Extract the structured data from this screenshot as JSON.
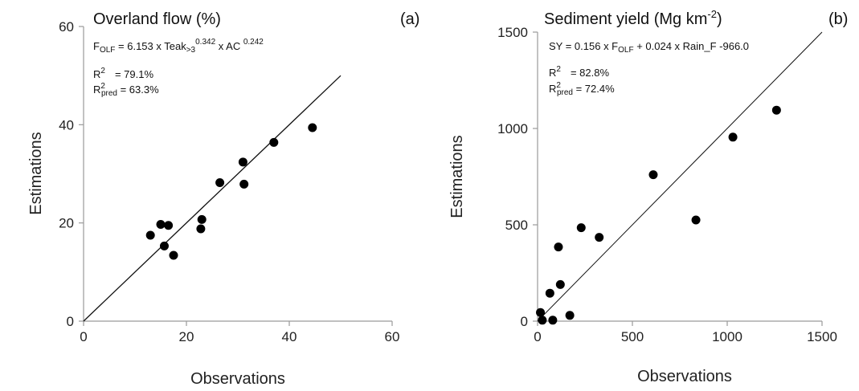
{
  "chart_data": [
    {
      "type": "scatter",
      "panel_label": "(a)",
      "title": "Overland flow (%)",
      "xlabel": "Observations",
      "ylabel": "Estimations",
      "xlim": [
        0,
        60
      ],
      "ylim": [
        0,
        60
      ],
      "xticks": [
        0,
        20,
        40,
        60
      ],
      "yticks": [
        0,
        20,
        40,
        60
      ],
      "tick_labels_x": [
        "0",
        "20",
        "40",
        "60"
      ],
      "tick_labels_y": [
        "0",
        "20",
        "40",
        "60"
      ],
      "equation": {
        "lhs": "F",
        "lhs_sub": "OLF",
        "rest1": " = 6.153 x Teak",
        "sub1": ">3",
        "sup1": "0.342",
        "rest2": " x AC ",
        "sup2": "0.242"
      },
      "r2": {
        "label": "R",
        "sup": "2",
        "value": "= 79.1%"
      },
      "r2pred": {
        "label": "R",
        "sup": "2",
        "sub": "pred",
        "value": " = 63.3%"
      },
      "fit_line": {
        "x": [
          0,
          50
        ],
        "y": [
          0,
          50
        ]
      },
      "points": [
        {
          "x": 13,
          "y": 17.5
        },
        {
          "x": 15,
          "y": 19.7
        },
        {
          "x": 15.7,
          "y": 15.3
        },
        {
          "x": 16.5,
          "y": 19.5
        },
        {
          "x": 17.5,
          "y": 13.4
        },
        {
          "x": 22.8,
          "y": 18.8
        },
        {
          "x": 23,
          "y": 20.7
        },
        {
          "x": 26.5,
          "y": 28.2
        },
        {
          "x": 31,
          "y": 32.4
        },
        {
          "x": 31.2,
          "y": 27.9
        },
        {
          "x": 37,
          "y": 36.4
        },
        {
          "x": 44.5,
          "y": 39.4
        }
      ]
    },
    {
      "type": "scatter",
      "panel_label": "(b)",
      "title": "Sediment yield (Mg km",
      "title_sup": "-2",
      "title_end": ")",
      "xlabel": "Observations",
      "ylabel": "Estimations",
      "xlim": [
        0,
        1500
      ],
      "ylim": [
        0,
        1500
      ],
      "xticks": [
        0,
        500,
        1000,
        1500
      ],
      "yticks": [
        0,
        500,
        1000,
        1500
      ],
      "tick_labels_x": [
        "0",
        "500",
        "1000",
        "1500"
      ],
      "tick_labels_y": [
        "0",
        "500",
        "1000",
        "1500"
      ],
      "equation": {
        "p1": "SY = 0.156 x F",
        "sub1": "OLF",
        "p2": " + 0.024 x Rain_F -966.0"
      },
      "r2": {
        "label": "R",
        "sup": "2",
        "value": "= 82.8%"
      },
      "r2pred": {
        "label": "R",
        "sup": "2",
        "sub": "pred",
        "value": " = 72.4%"
      },
      "fit_line": {
        "x": [
          0,
          1500
        ],
        "y": [
          0,
          1500
        ]
      },
      "points": [
        {
          "x": 15,
          "y": 45
        },
        {
          "x": 25,
          "y": 5
        },
        {
          "x": 65,
          "y": 145
        },
        {
          "x": 80,
          "y": 5
        },
        {
          "x": 110,
          "y": 385
        },
        {
          "x": 120,
          "y": 190
        },
        {
          "x": 170,
          "y": 30
        },
        {
          "x": 230,
          "y": 485
        },
        {
          "x": 325,
          "y": 435
        },
        {
          "x": 610,
          "y": 760
        },
        {
          "x": 835,
          "y": 525
        },
        {
          "x": 1030,
          "y": 955
        },
        {
          "x": 1260,
          "y": 1095
        }
      ]
    }
  ]
}
